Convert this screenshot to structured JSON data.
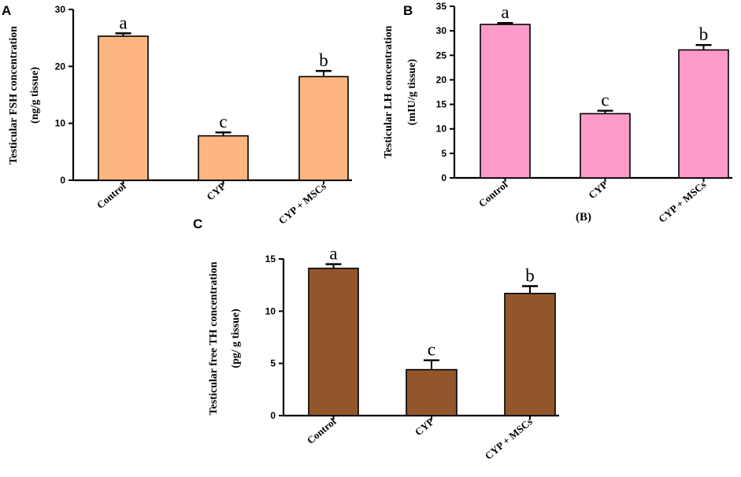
{
  "chart_data": [
    {
      "panel": "A",
      "type": "bar",
      "categories": [
        "Control",
        "CYP",
        "CYP + MSCs"
      ],
      "values": [
        25.3,
        7.8,
        18.2
      ],
      "errors": [
        0.5,
        0.6,
        1.0
      ],
      "significance": [
        "a",
        "c",
        "b"
      ],
      "ylabel_line1": "Testicular FSH concentration",
      "ylabel_line2": "(ng/g tissue)",
      "ylim": [
        0,
        30
      ],
      "yticks": [
        0,
        10,
        20,
        30
      ],
      "color": "#FDB67F",
      "subtitle": ""
    },
    {
      "panel": "B",
      "type": "bar",
      "categories": [
        "Control",
        "CYP",
        "CYP + MSCs"
      ],
      "values": [
        31.3,
        13.1,
        26.1
      ],
      "errors": [
        0.3,
        0.6,
        1.0
      ],
      "significance": [
        "a",
        "c",
        "b"
      ],
      "ylabel_line1": "Testicular LH concentration",
      "ylabel_line2": "(mIU/g tissue)",
      "ylim": [
        0,
        35
      ],
      "yticks": [
        0,
        5,
        10,
        15,
        20,
        25,
        30,
        35
      ],
      "color": "#FC9AC9",
      "subtitle": "(B)"
    },
    {
      "panel": "C",
      "type": "bar",
      "categories": [
        "Control",
        "CYP",
        "CYP + MSCs"
      ],
      "values": [
        14.1,
        4.4,
        11.7
      ],
      "errors": [
        0.4,
        0.9,
        0.7
      ],
      "significance": [
        "a",
        "c",
        "b"
      ],
      "ylabel_line1": "Testicular free TH concentration",
      "ylabel_line2": "(pg/ g tissue)",
      "ylim": [
        0,
        15
      ],
      "yticks": [
        0,
        5,
        10,
        15
      ],
      "color": "#92562C",
      "subtitle": ""
    }
  ],
  "style": {
    "axis_color": "#000000",
    "bar_edge": "#000000"
  }
}
